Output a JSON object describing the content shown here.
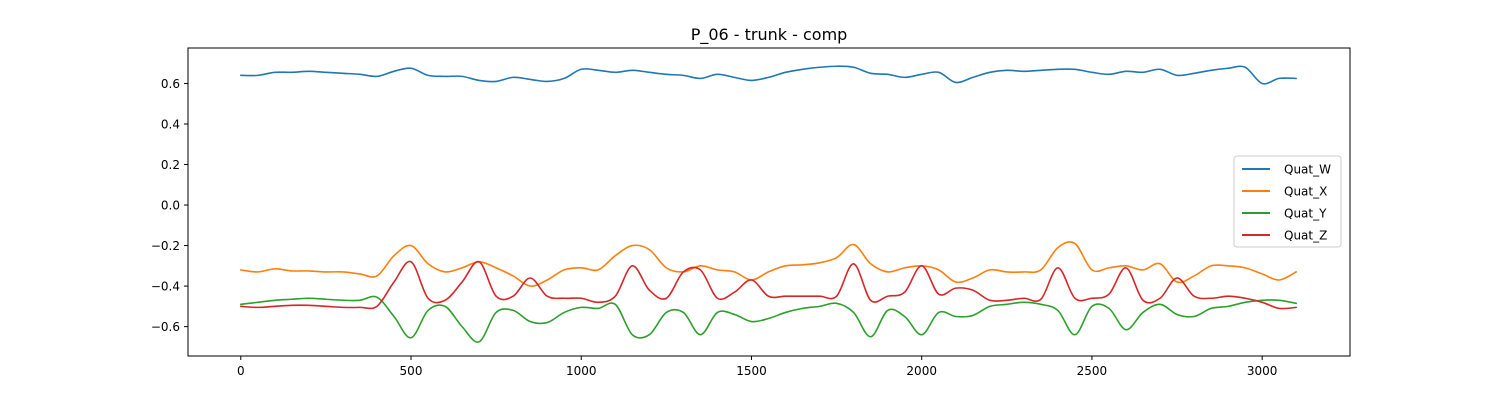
{
  "chart_data": {
    "type": "line",
    "title": "P_06 - trunk - comp",
    "xlabel": "",
    "ylabel": "",
    "xlim": [
      -155,
      3258
    ],
    "ylim": [
      -0.745,
      0.775
    ],
    "xticks": [
      0,
      500,
      1000,
      1500,
      2000,
      2500,
      3000
    ],
    "yticks": [
      0.6,
      0.4,
      0.2,
      0.0,
      -0.2,
      -0.4,
      -0.6
    ],
    "ytick_labels": [
      "0.6",
      "0.4",
      "0.2",
      "0.0",
      "−0.2",
      "−0.4",
      "−0.6"
    ],
    "grid": false,
    "legend_position": "center-right",
    "x": [
      0,
      50,
      100,
      150,
      200,
      250,
      300,
      350,
      400,
      450,
      500,
      550,
      600,
      650,
      700,
      750,
      800,
      850,
      900,
      950,
      1000,
      1050,
      1100,
      1150,
      1200,
      1250,
      1300,
      1350,
      1400,
      1450,
      1500,
      1550,
      1600,
      1650,
      1700,
      1750,
      1800,
      1850,
      1900,
      1950,
      2000,
      2050,
      2100,
      2150,
      2200,
      2250,
      2300,
      2350,
      2400,
      2450,
      2500,
      2550,
      2600,
      2650,
      2700,
      2750,
      2800,
      2850,
      2900,
      2950,
      3000,
      3050,
      3100
    ],
    "series": [
      {
        "name": "Quat_W",
        "color": "#1f77b4",
        "values": [
          0.64,
          0.64,
          0.655,
          0.655,
          0.66,
          0.655,
          0.65,
          0.645,
          0.635,
          0.66,
          0.675,
          0.64,
          0.635,
          0.635,
          0.615,
          0.61,
          0.63,
          0.62,
          0.61,
          0.625,
          0.67,
          0.665,
          0.655,
          0.665,
          0.655,
          0.645,
          0.64,
          0.625,
          0.645,
          0.63,
          0.615,
          0.63,
          0.655,
          0.67,
          0.68,
          0.685,
          0.68,
          0.65,
          0.645,
          0.63,
          0.645,
          0.655,
          0.605,
          0.63,
          0.655,
          0.665,
          0.66,
          0.665,
          0.67,
          0.67,
          0.655,
          0.645,
          0.66,
          0.655,
          0.67,
          0.64,
          0.65,
          0.665,
          0.675,
          0.68,
          0.6,
          0.625,
          0.625
        ]
      },
      {
        "name": "Quat_X",
        "color": "#ff7f0e",
        "values": [
          -0.32,
          -0.33,
          -0.315,
          -0.325,
          -0.325,
          -0.33,
          -0.33,
          -0.34,
          -0.35,
          -0.25,
          -0.2,
          -0.29,
          -0.33,
          -0.31,
          -0.28,
          -0.31,
          -0.35,
          -0.4,
          -0.37,
          -0.32,
          -0.31,
          -0.32,
          -0.25,
          -0.2,
          -0.22,
          -0.31,
          -0.33,
          -0.3,
          -0.32,
          -0.33,
          -0.37,
          -0.33,
          -0.3,
          -0.295,
          -0.285,
          -0.26,
          -0.195,
          -0.29,
          -0.33,
          -0.31,
          -0.3,
          -0.32,
          -0.38,
          -0.36,
          -0.32,
          -0.33,
          -0.33,
          -0.32,
          -0.21,
          -0.19,
          -0.32,
          -0.31,
          -0.3,
          -0.32,
          -0.29,
          -0.38,
          -0.35,
          -0.3,
          -0.3,
          -0.31,
          -0.34,
          -0.37,
          -0.33
        ]
      },
      {
        "name": "Quat_Y",
        "color": "#2ca02c",
        "values": [
          -0.49,
          -0.48,
          -0.47,
          -0.465,
          -0.46,
          -0.465,
          -0.47,
          -0.47,
          -0.455,
          -0.55,
          -0.655,
          -0.52,
          -0.5,
          -0.6,
          -0.675,
          -0.53,
          -0.52,
          -0.575,
          -0.58,
          -0.53,
          -0.505,
          -0.51,
          -0.49,
          -0.64,
          -0.64,
          -0.53,
          -0.53,
          -0.64,
          -0.53,
          -0.54,
          -0.575,
          -0.56,
          -0.53,
          -0.51,
          -0.5,
          -0.485,
          -0.53,
          -0.65,
          -0.52,
          -0.55,
          -0.64,
          -0.53,
          -0.55,
          -0.545,
          -0.5,
          -0.49,
          -0.48,
          -0.49,
          -0.52,
          -0.64,
          -0.5,
          -0.51,
          -0.615,
          -0.53,
          -0.49,
          -0.54,
          -0.55,
          -0.51,
          -0.5,
          -0.48,
          -0.47,
          -0.47,
          -0.485
        ]
      },
      {
        "name": "Quat_Z",
        "color": "#d62728",
        "values": [
          -0.5,
          -0.505,
          -0.5,
          -0.495,
          -0.495,
          -0.5,
          -0.505,
          -0.505,
          -0.5,
          -0.38,
          -0.28,
          -0.46,
          -0.47,
          -0.38,
          -0.28,
          -0.45,
          -0.45,
          -0.36,
          -0.45,
          -0.46,
          -0.46,
          -0.48,
          -0.45,
          -0.3,
          -0.42,
          -0.46,
          -0.33,
          -0.32,
          -0.46,
          -0.43,
          -0.37,
          -0.45,
          -0.45,
          -0.45,
          -0.45,
          -0.45,
          -0.29,
          -0.47,
          -0.45,
          -0.43,
          -0.3,
          -0.44,
          -0.41,
          -0.42,
          -0.47,
          -0.47,
          -0.46,
          -0.465,
          -0.31,
          -0.46,
          -0.46,
          -0.44,
          -0.31,
          -0.47,
          -0.46,
          -0.36,
          -0.45,
          -0.46,
          -0.45,
          -0.46,
          -0.48,
          -0.51,
          -0.505
        ]
      }
    ]
  }
}
